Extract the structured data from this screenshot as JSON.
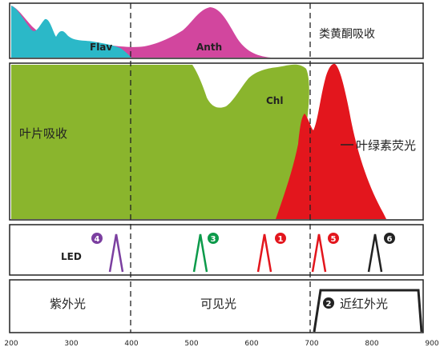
{
  "panels": {
    "flavonoid": {
      "title": "类黄酮吸收",
      "flav_label": "Flav",
      "anth_label": "Anth"
    },
    "leaf": {
      "title": "叶片吸收",
      "chl_label": "Chl",
      "fluor_label": "叶绿素荧光"
    },
    "led": {
      "title": "LED",
      "markers": [
        "4",
        "3",
        "1",
        "5",
        "6"
      ]
    },
    "regions": {
      "uv": "紫外光",
      "visible": "可见光",
      "nir_marker": "2",
      "nir": "近红外光"
    }
  },
  "x_axis": {
    "ticks": [
      "200",
      "300",
      "400",
      "500",
      "600",
      "700",
      "800",
      "900"
    ]
  },
  "colors": {
    "flav": "#2bb8c8",
    "anth": "#d2469e",
    "leaf": "#8ab52d",
    "fluor": "#e3161d",
    "led_purple": "#7b3fa0",
    "led_green": "#0c9a4a",
    "led_red": "#e3161d",
    "led_black": "#222222"
  }
}
